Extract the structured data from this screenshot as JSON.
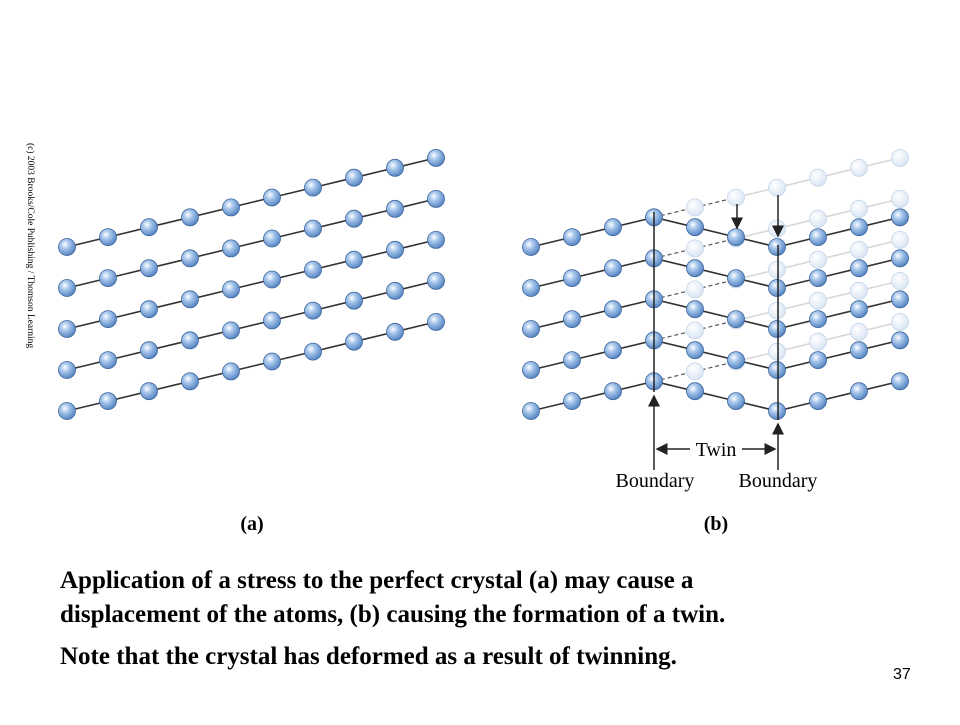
{
  "figure": {
    "copyright": "(c) 2003 Brooks/Cole Publishing / Thomson Learning",
    "twin_label": "Twin",
    "left_boundary": "Boundary",
    "right_boundary": "Boundary",
    "panel_a": "(a)",
    "panel_b": "(b)"
  },
  "caption": {
    "lines": [
      "Application of a stress to the perfect crystal (a) may cause a",
      "displacement of the atoms, (b) causing the formation of a twin.",
      "Note that the crystal has deformed as a result of twinning."
    ]
  },
  "page_number": "37"
}
